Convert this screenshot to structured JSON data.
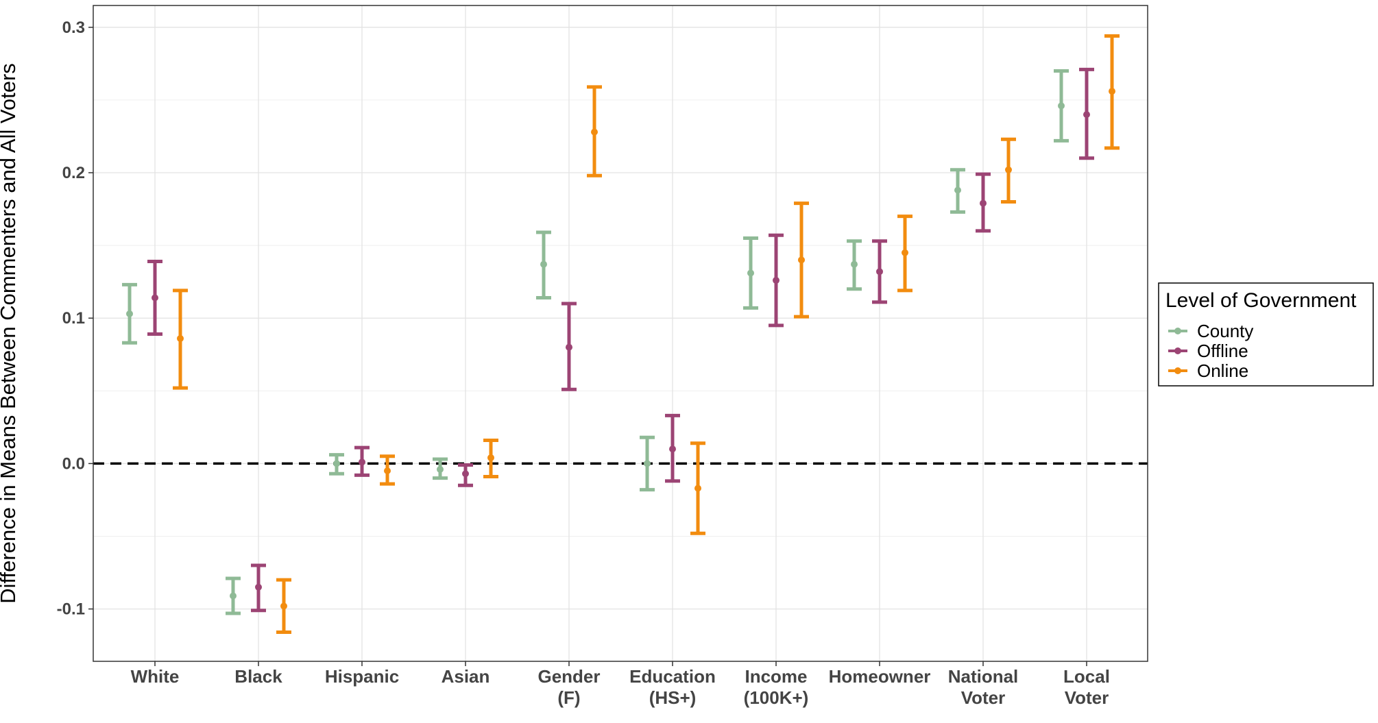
{
  "chart_data": {
    "type": "errorbar",
    "title": "",
    "xlabel": "",
    "ylabel": "Difference in Means Between Commenters and All Voters",
    "ylim": [
      -0.136,
      0.315
    ],
    "yticks": [
      -0.1,
      0.0,
      0.1,
      0.2,
      0.3
    ],
    "ytick_labels": [
      "-0.1",
      "0.0",
      "0.1",
      "0.2",
      "0.3"
    ],
    "grid": true,
    "reference_line": {
      "y": 0,
      "style": "dashed"
    },
    "categories": [
      [
        "White"
      ],
      [
        "Black"
      ],
      [
        "Hispanic"
      ],
      [
        "Asian"
      ],
      [
        "Gender",
        "(F)"
      ],
      [
        "Education",
        "(HS+)"
      ],
      [
        "Income",
        "(100K+)"
      ],
      [
        "Homeowner"
      ],
      [
        "National",
        "Voter"
      ],
      [
        "Local",
        "Voter"
      ]
    ],
    "legend": {
      "title": "Level of Government",
      "position": "right"
    },
    "series": [
      {
        "name": "County",
        "color": "#8fba96",
        "estimates": [
          0.103,
          -0.091,
          0.0,
          -0.004,
          0.137,
          0.0,
          0.131,
          0.137,
          0.188,
          0.246
        ],
        "lower": [
          0.083,
          -0.103,
          -0.007,
          -0.01,
          0.114,
          -0.018,
          0.107,
          0.12,
          0.173,
          0.222
        ],
        "upper": [
          0.123,
          -0.079,
          0.006,
          0.003,
          0.159,
          0.018,
          0.155,
          0.153,
          0.202,
          0.27
        ]
      },
      {
        "name": "Offline",
        "color": "#9c4474",
        "estimates": [
          0.114,
          -0.085,
          0.001,
          -0.007,
          0.08,
          0.01,
          0.126,
          0.132,
          0.179,
          0.24
        ],
        "lower": [
          0.089,
          -0.101,
          -0.008,
          -0.015,
          0.051,
          -0.012,
          0.095,
          0.111,
          0.16,
          0.21
        ],
        "upper": [
          0.139,
          -0.07,
          0.011,
          -0.001,
          0.11,
          0.033,
          0.157,
          0.153,
          0.199,
          0.271
        ]
      },
      {
        "name": "Online",
        "color": "#f28c0f",
        "estimates": [
          0.086,
          -0.098,
          -0.005,
          0.004,
          0.228,
          -0.017,
          0.14,
          0.145,
          0.202,
          0.256
        ],
        "lower": [
          0.052,
          -0.116,
          -0.014,
          -0.009,
          0.198,
          -0.048,
          0.101,
          0.119,
          0.18,
          0.217
        ],
        "upper": [
          0.119,
          -0.08,
          0.005,
          0.016,
          0.259,
          0.014,
          0.179,
          0.17,
          0.223,
          0.294
        ]
      }
    ]
  }
}
